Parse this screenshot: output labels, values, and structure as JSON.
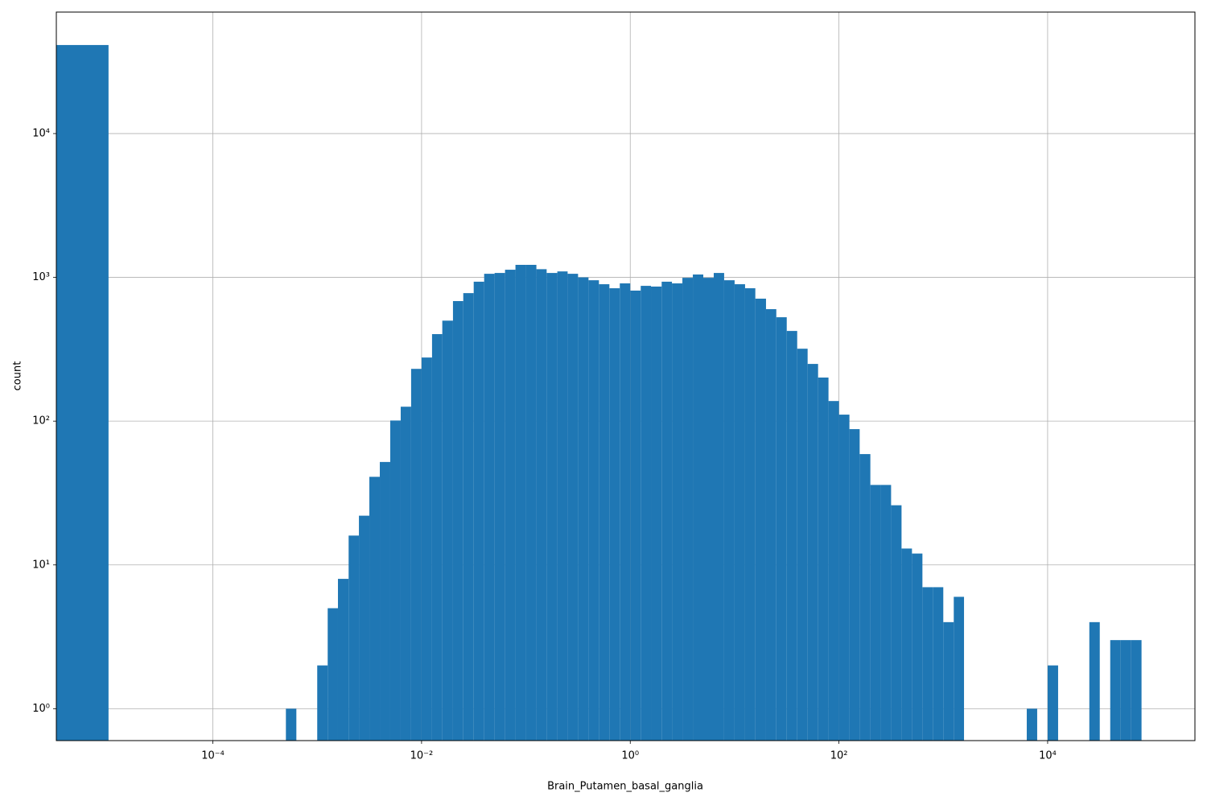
{
  "chart_data": {
    "type": "histogram",
    "xlabel": "Brain_Putamen_basal_ganglia",
    "ylabel": "count",
    "color": "#1f77b4",
    "xscale": "log",
    "yscale": "log",
    "grid": true,
    "bins": [
      3.16e-06,
      1e-05,
      0.000501,
      0.000631,
      0.001,
      0.00126,
      0.00158,
      0.002,
      0.00251,
      0.00316,
      0.00398,
      0.00501,
      0.00631,
      0.00794,
      0.01,
      0.0126,
      0.0158,
      0.02,
      0.0251,
      0.0316,
      0.0398,
      0.0501,
      0.0631,
      0.0794,
      0.1,
      0.126,
      0.158,
      0.2,
      0.251,
      0.316,
      0.398,
      0.501,
      0.631,
      0.794,
      1,
      1.26,
      1.58,
      2,
      2.51,
      3.16,
      3.98,
      5.01,
      6.31,
      7.94,
      10,
      12.6,
      15.8,
      20,
      25.1,
      31.6,
      39.8,
      50.1,
      63.1,
      79.4,
      100,
      126,
      158,
      200,
      251,
      316,
      398,
      501,
      631,
      794,
      1000,
      1260,
      1580,
      6310,
      7940,
      10000.0,
      12600.0,
      25100.0,
      31600.0,
      39800.0,
      50100.0,
      63100.0,
      79400.0
    ],
    "counts": [
      41300,
      0,
      1,
      0,
      2,
      5,
      8,
      16,
      22,
      41,
      52,
      101,
      126,
      231,
      277,
      403,
      500,
      684,
      777,
      933,
      1059,
      1073,
      1130,
      1222,
      1222,
      1140,
      1073,
      1100,
      1059,
      1000,
      955,
      896,
      840,
      908,
      809,
      873,
      863,
      933,
      908,
      993,
      1047,
      993,
      1073,
      955,
      896,
      840,
      711,
      601,
      528,
      424,
      319,
      250,
      201,
      138,
      111,
      88,
      59,
      36,
      36,
      26,
      13,
      12,
      7,
      7,
      4,
      6,
      0,
      1,
      0,
      2,
      0,
      4,
      0,
      3,
      3,
      3
    ],
    "xlim": [
      3.16e-06,
      258000.0
    ],
    "ylim": [
      0.6,
      70000
    ],
    "xticks": [
      {
        "value": 0.0001,
        "label": "10⁻⁴"
      },
      {
        "value": 0.01,
        "label": "10⁻²"
      },
      {
        "value": 1,
        "label": "10⁰"
      },
      {
        "value": 100,
        "label": "10²"
      },
      {
        "value": 10000,
        "label": "10⁴"
      }
    ],
    "yticks": [
      {
        "value": 1,
        "label": "10⁰"
      },
      {
        "value": 10,
        "label": "10¹"
      },
      {
        "value": 100,
        "label": "10²"
      },
      {
        "value": 1000,
        "label": "10³"
      },
      {
        "value": 10000,
        "label": "10⁴"
      }
    ]
  }
}
